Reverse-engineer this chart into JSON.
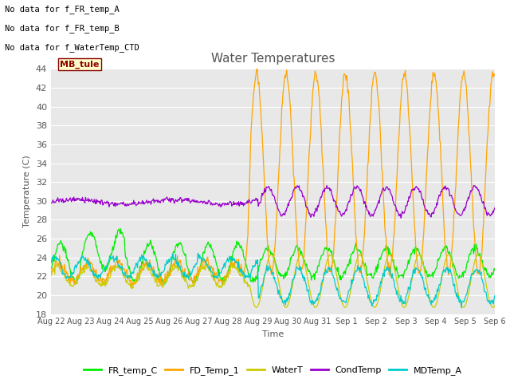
{
  "title": "Water Temperatures",
  "xlabel": "Time",
  "ylabel": "Temperature (C)",
  "ylim": [
    18,
    44
  ],
  "yticks": [
    18,
    20,
    22,
    24,
    26,
    28,
    30,
    32,
    34,
    36,
    38,
    40,
    42,
    44
  ],
  "bg_color": "#e8e8e8",
  "grid_color": "white",
  "text_color": "#555555",
  "annotations": [
    "No data for f_FR_temp_A",
    "No data for f_FR_temp_B",
    "No data for f_WaterTemp_CTD"
  ],
  "mb_tule_label": "MB_tule",
  "legend_entries": [
    "FR_temp_C",
    "FD_Temp_1",
    "WaterT",
    "CondTemp",
    "MDTemp_A"
  ],
  "legend_colors": [
    "#00ee00",
    "#ffa500",
    "#cccc00",
    "#9900cc",
    "#00cccc"
  ],
  "x_tick_labels": [
    "Aug 22",
    "Aug 23",
    "Aug 24",
    "Aug 25",
    "Aug 26",
    "Aug 27",
    "Aug 28",
    "Aug 29",
    "Aug 30",
    "Aug 31",
    "Sep 1",
    "Sep 2",
    "Sep 3",
    "Sep 4",
    "Sep 5",
    "Sep 6"
  ],
  "line_colors": {
    "FR_temp_C": "#00ee00",
    "FD_Temp_1": "#ffa500",
    "WaterT": "#cccc00",
    "CondTemp": "#9900cc",
    "MDTemp_A": "#00cccc"
  }
}
